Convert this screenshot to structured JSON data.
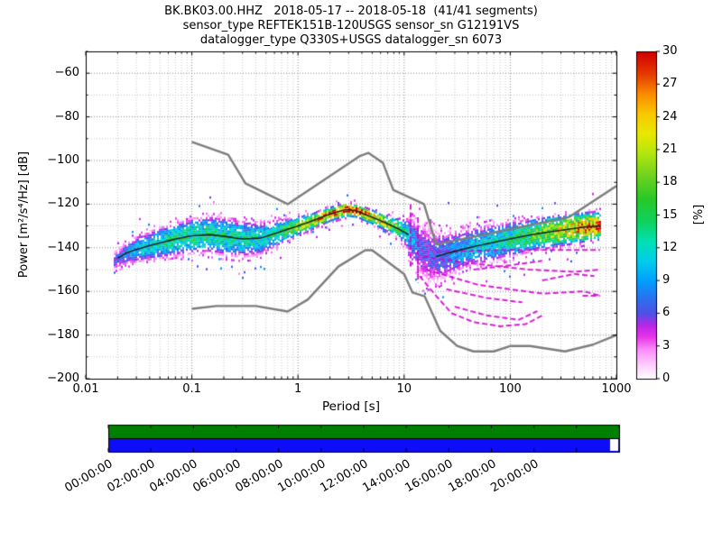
{
  "chart_data": {
    "type": "heatmap",
    "title_lines": [
      "BK.BK03.00.HHZ   2018-05-17 -- 2018-05-18  (41/41 segments)",
      "sensor_type REFTEK151B-120USGS sensor_sn G12191VS",
      "datalogger_type Q330S+USGS datalogger_sn 6073"
    ],
    "xlabel": "Period [s]",
    "ylabel": "Power [m²/s⁴/Hz] [dB]",
    "xscale": "log",
    "xlim": [
      0.01,
      1000
    ],
    "ylim": [
      -200,
      -50
    ],
    "xticks": [
      0.01,
      0.1,
      1,
      10,
      100,
      1000
    ],
    "yticks": [
      -60,
      -80,
      -100,
      -120,
      -140,
      -160,
      -180,
      -200
    ],
    "grid": true,
    "colorbar": {
      "label": "[%]",
      "min": 0,
      "max": 30,
      "ticks": [
        0,
        3,
        6,
        9,
        12,
        15,
        18,
        21,
        24,
        27,
        30
      ],
      "colormap": [
        [
          0.0,
          "#ffffff"
        ],
        [
          0.04,
          "#ffd2ff"
        ],
        [
          0.09,
          "#fa8cfa"
        ],
        [
          0.13,
          "#e832e8"
        ],
        [
          0.165,
          "#b428e6"
        ],
        [
          0.2,
          "#5050e6"
        ],
        [
          0.25,
          "#2873f0"
        ],
        [
          0.3,
          "#00a0ff"
        ],
        [
          0.36,
          "#00cdeb"
        ],
        [
          0.42,
          "#00e1b4"
        ],
        [
          0.48,
          "#0fd25f"
        ],
        [
          0.55,
          "#28c828"
        ],
        [
          0.62,
          "#6ed21e"
        ],
        [
          0.69,
          "#b4e60f"
        ],
        [
          0.75,
          "#e8e800"
        ],
        [
          0.81,
          "#fac800"
        ],
        [
          0.87,
          "#fa8c00"
        ],
        [
          0.93,
          "#e63c00"
        ],
        [
          1.0,
          "#d20000"
        ]
      ]
    },
    "noise_models": {
      "color": "#7d7d7d",
      "high": [
        [
          0.1,
          -91.5
        ],
        [
          0.22,
          -97.4
        ],
        [
          0.32,
          -110.5
        ],
        [
          0.8,
          -120.0
        ],
        [
          3.8,
          -98.0
        ],
        [
          4.6,
          -96.5
        ],
        [
          6.3,
          -101.0
        ],
        [
          7.9,
          -113.5
        ],
        [
          15.4,
          -120.0
        ],
        [
          20.0,
          -138.5
        ],
        [
          354.8,
          -126.0
        ],
        [
          1000,
          -111.7
        ]
      ],
      "low": [
        [
          0.1,
          -168.0
        ],
        [
          0.17,
          -166.7
        ],
        [
          0.4,
          -166.7
        ],
        [
          0.8,
          -169.2
        ],
        [
          1.24,
          -163.7
        ],
        [
          2.4,
          -148.6
        ],
        [
          4.3,
          -141.1
        ],
        [
          5.0,
          -141.1
        ],
        [
          6.0,
          -144.0
        ],
        [
          10.0,
          -152.1
        ],
        [
          12.0,
          -160.5
        ],
        [
          15.6,
          -162.2
        ],
        [
          21.9,
          -178.1
        ],
        [
          31.6,
          -185.0
        ],
        [
          45.0,
          -187.5
        ],
        [
          70.0,
          -187.5
        ],
        [
          101.0,
          -185.0
        ],
        [
          154.0,
          -185.0
        ],
        [
          328.0,
          -187.5
        ],
        [
          600.0,
          -184.4
        ],
        [
          1000,
          -180.0
        ]
      ]
    },
    "psd": {
      "mode": [
        [
          0.018,
          -146
        ],
        [
          0.025,
          -142
        ],
        [
          0.04,
          -139
        ],
        [
          0.07,
          -136
        ],
        [
          0.1,
          -134.5
        ],
        [
          0.15,
          -134
        ],
        [
          0.22,
          -135
        ],
        [
          0.3,
          -136
        ],
        [
          0.45,
          -135.5
        ],
        [
          0.6,
          -133.5
        ],
        [
          0.8,
          -131.5
        ],
        [
          1,
          -130
        ],
        [
          1.4,
          -127.5
        ],
        [
          2,
          -124.5
        ],
        [
          2.8,
          -122.5
        ],
        [
          3.5,
          -123
        ],
        [
          5,
          -126
        ],
        [
          7,
          -129
        ],
        [
          9,
          -131.5
        ],
        [
          11,
          -134
        ],
        [
          13,
          -139
        ],
        [
          16,
          -143
        ],
        [
          20,
          -144
        ],
        [
          28,
          -142
        ],
        [
          45,
          -139.5
        ],
        [
          70,
          -137.5
        ],
        [
          110,
          -135.5
        ],
        [
          180,
          -133.5
        ],
        [
          300,
          -132
        ],
        [
          500,
          -130.5
        ],
        [
          700,
          -130
        ]
      ],
      "halfwidth": [
        [
          0.018,
          4
        ],
        [
          0.03,
          6
        ],
        [
          0.06,
          7.5
        ],
        [
          0.1,
          8
        ],
        [
          0.2,
          8.5
        ],
        [
          0.35,
          8
        ],
        [
          0.55,
          6.5
        ],
        [
          0.8,
          5
        ],
        [
          1.2,
          4
        ],
        [
          2,
          3.2
        ],
        [
          3,
          3
        ],
        [
          5,
          3.2
        ],
        [
          8,
          4
        ],
        [
          10,
          6
        ],
        [
          13,
          11
        ],
        [
          17,
          13
        ],
        [
          22,
          11
        ],
        [
          35,
          9
        ],
        [
          60,
          8.5
        ],
        [
          100,
          8
        ],
        [
          200,
          7.5
        ],
        [
          400,
          7
        ],
        [
          700,
          6.5
        ]
      ],
      "peak_pct": [
        [
          0.018,
          6
        ],
        [
          0.03,
          10
        ],
        [
          0.06,
          13
        ],
        [
          0.1,
          14
        ],
        [
          0.2,
          13
        ],
        [
          0.35,
          12
        ],
        [
          0.55,
          13
        ],
        [
          0.8,
          16
        ],
        [
          1.2,
          20
        ],
        [
          2,
          26
        ],
        [
          2.8,
          30
        ],
        [
          4,
          27
        ],
        [
          6,
          23
        ],
        [
          8,
          18
        ],
        [
          10,
          12
        ],
        [
          13,
          7
        ],
        [
          18,
          6
        ],
        [
          25,
          8
        ],
        [
          40,
          10
        ],
        [
          70,
          12
        ],
        [
          110,
          14
        ],
        [
          180,
          17
        ],
        [
          300,
          21
        ],
        [
          500,
          25
        ],
        [
          700,
          26
        ]
      ],
      "mode_line_color": "#151515",
      "mode_line_ranges": [
        [
          0.02,
          11
        ],
        [
          20,
          700
        ]
      ],
      "outlier_color": "#d400d4",
      "outliers": [
        [
          [
            11.5,
            -120
          ],
          [
            11.5,
            -149
          ]
        ],
        [
          [
            13.5,
            -126
          ],
          [
            13.5,
            -156
          ]
        ],
        [
          [
            15,
            -144
          ],
          [
            40,
            -147
          ],
          [
            150,
            -150
          ],
          [
            400,
            -151
          ],
          [
            700,
            -150
          ]
        ],
        [
          [
            16,
            -150
          ],
          [
            50,
            -157
          ],
          [
            200,
            -161
          ],
          [
            500,
            -160
          ],
          [
            700,
            -162
          ]
        ],
        [
          [
            14,
            -153
          ],
          [
            20,
            -162
          ],
          [
            28,
            -170
          ],
          [
            45,
            -174
          ],
          [
            80,
            -176
          ],
          [
            140,
            -175
          ],
          [
            200,
            -171
          ]
        ],
        [
          [
            30,
            -167
          ],
          [
            60,
            -171
          ],
          [
            120,
            -173
          ],
          [
            180,
            -169
          ]
        ],
        [
          [
            20,
            -142
          ],
          [
            80,
            -141
          ],
          [
            300,
            -141
          ],
          [
            700,
            -141
          ]
        ],
        [
          [
            480,
            -162
          ],
          [
            700,
            -162
          ]
        ],
        [
          [
            200,
            -155
          ],
          [
            400,
            -152
          ],
          [
            620,
            -153
          ]
        ],
        [
          [
            25,
            -159
          ],
          [
            60,
            -163
          ],
          [
            130,
            -165
          ]
        ],
        [
          [
            45,
            -150
          ],
          [
            100,
            -148
          ],
          [
            200,
            -146
          ]
        ]
      ]
    },
    "timeline": {
      "labels": [
        "00:00:00",
        "02:00:00",
        "04:00:00",
        "06:00:00",
        "08:00:00",
        "10:00:00",
        "12:00:00",
        "14:00:00",
        "16:00:00",
        "18:00:00",
        "20:00:00"
      ],
      "label_hours": [
        0,
        2,
        4,
        6,
        8,
        10,
        12,
        14,
        16,
        18,
        20
      ],
      "tick_hours": [
        0,
        2,
        4,
        6,
        8,
        10,
        12,
        14,
        16,
        18,
        20,
        22,
        24
      ],
      "span_hours": 24,
      "top_color": "#008000",
      "bottom_color": "#0d0dfa",
      "gap_color": "#ffffff"
    }
  }
}
